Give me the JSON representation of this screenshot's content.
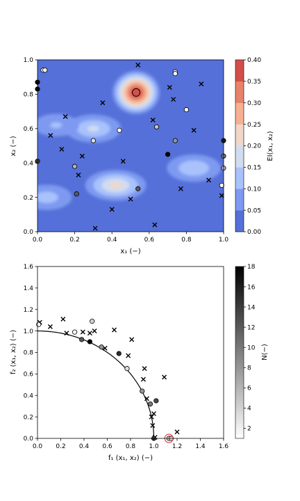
{
  "figure": {
    "top": {
      "xlabel": "x₁ (−)",
      "ylabel": "x₂ (−)",
      "xlim": [
        0,
        1
      ],
      "ylim": [
        0,
        1
      ],
      "xticks": [
        "0.0",
        "0.2",
        "0.4",
        "0.6",
        "0.8",
        "1.0"
      ],
      "yticks": [
        "0.0",
        "0.2",
        "0.4",
        "0.6",
        "0.8",
        "1.0"
      ],
      "colorbar": {
        "label": "EI(x₁, x₂)",
        "ticks": [
          "0.00",
          "0.05",
          "0.10",
          "0.15",
          "0.20",
          "0.25",
          "0.30",
          "0.35",
          "0.40"
        ],
        "levels": [
          0,
          0.05,
          0.1,
          0.15,
          0.2,
          0.25,
          0.3,
          0.35,
          0.4
        ],
        "colors": [
          "#5570d8",
          "#7e9af0",
          "#a9c2fc",
          "#d2dcf0",
          "#f1d7c9",
          "#f6b193",
          "#e8836a",
          "#d3504a"
        ]
      }
    },
    "bottom": {
      "xlabel": "f₁ (x₁, x₂) (−)",
      "ylabel": "f₂ (x₁, x₂) (−)",
      "xlim": [
        0,
        1.6
      ],
      "ylim": [
        0,
        1.6
      ],
      "xticks": [
        "0.0",
        "0.2",
        "0.4",
        "0.6",
        "0.8",
        "1.0",
        "1.2",
        "1.4",
        "1.6"
      ],
      "yticks": [
        "0.0",
        "0.2",
        "0.4",
        "0.6",
        "0.8",
        "1.0",
        "1.2",
        "1.4",
        "1.6"
      ],
      "colorbar": {
        "label": "N(−)",
        "ticks": [
          "2",
          "4",
          "6",
          "8",
          "10",
          "12",
          "14",
          "16",
          "18"
        ],
        "range": [
          1,
          18
        ]
      }
    }
  },
  "chart_data": [
    {
      "type": "contour",
      "title": "",
      "xlabel": "x₁ (−)",
      "ylabel": "x₂ (−)",
      "xlim": [
        0,
        1
      ],
      "ylim": [
        0,
        1
      ],
      "colorbar_label": "EI(x₁, x₂)",
      "levels": [
        0,
        0.05,
        0.1,
        0.15,
        0.2,
        0.25,
        0.3,
        0.35,
        0.4
      ],
      "peaks": [
        {
          "x": 0.53,
          "y": 0.81,
          "value": 0.37
        },
        {
          "x": 0.42,
          "y": 0.27,
          "value": 0.2
        },
        {
          "x": 0.3,
          "y": 0.6,
          "value": 0.15
        },
        {
          "x": 0.84,
          "y": 0.37,
          "value": 0.14
        },
        {
          "x": 0.1,
          "y": 0.62,
          "value": 0.1
        },
        {
          "x": 0.05,
          "y": 0.2,
          "value": 0.12
        }
      ],
      "infill_point": {
        "x": 0.53,
        "y": 0.81
      },
      "sample_points": [
        {
          "x": 0.0,
          "y": 0.87,
          "N": 18
        },
        {
          "x": 0.0,
          "y": 0.83,
          "N": 18
        },
        {
          "x": 0.03,
          "y": 0.94,
          "N": 1
        },
        {
          "x": 0.04,
          "y": 0.94,
          "N": 1
        },
        {
          "x": 0.3,
          "y": 0.53,
          "N": 3
        },
        {
          "x": 0.44,
          "y": 0.59,
          "N": 1
        },
        {
          "x": 0.64,
          "y": 0.61,
          "N": 5
        },
        {
          "x": 0.74,
          "y": 0.93,
          "N": 1
        },
        {
          "x": 0.74,
          "y": 0.92,
          "N": 1
        },
        {
          "x": 0.8,
          "y": 0.71,
          "N": 1
        },
        {
          "x": 0.7,
          "y": 0.45,
          "N": 18
        },
        {
          "x": 0.74,
          "y": 0.53,
          "N": 8
        },
        {
          "x": 0.54,
          "y": 0.25,
          "N": 12
        },
        {
          "x": 0.21,
          "y": 0.22,
          "N": 12
        },
        {
          "x": 0.2,
          "y": 0.38,
          "N": 6
        },
        {
          "x": 0.0,
          "y": 0.41,
          "N": 14
        },
        {
          "x": 1.0,
          "y": 0.53,
          "N": 16
        },
        {
          "x": 1.0,
          "y": 0.44,
          "N": 10
        },
        {
          "x": 1.0,
          "y": 0.37,
          "N": 6
        },
        {
          "x": 0.99,
          "y": 0.27,
          "N": 1
        }
      ],
      "crosses": [
        {
          "x": 0.54,
          "y": 0.97
        },
        {
          "x": 0.88,
          "y": 0.86
        },
        {
          "x": 0.71,
          "y": 0.84
        },
        {
          "x": 0.73,
          "y": 0.77
        },
        {
          "x": 0.35,
          "y": 0.75
        },
        {
          "x": 0.15,
          "y": 0.67
        },
        {
          "x": 0.62,
          "y": 0.65
        },
        {
          "x": 0.84,
          "y": 0.59
        },
        {
          "x": 0.07,
          "y": 0.56
        },
        {
          "x": 0.13,
          "y": 0.48
        },
        {
          "x": 0.24,
          "y": 0.44
        },
        {
          "x": 0.46,
          "y": 0.41
        },
        {
          "x": 0.22,
          "y": 0.33
        },
        {
          "x": 0.92,
          "y": 0.3
        },
        {
          "x": 0.77,
          "y": 0.25
        },
        {
          "x": 0.99,
          "y": 0.21
        },
        {
          "x": 0.5,
          "y": 0.19
        },
        {
          "x": 0.4,
          "y": 0.13
        },
        {
          "x": 0.63,
          "y": 0.04
        },
        {
          "x": 0.31,
          "y": 0.02
        }
      ]
    },
    {
      "type": "scatter",
      "title": "",
      "xlabel": "f₁ (x₁, x₂) (−)",
      "ylabel": "f₂ (x₁, x₂) (−)",
      "xlim": [
        0,
        1.6
      ],
      "ylim": [
        0,
        1.6
      ],
      "colorbar_label": "N(−)",
      "pareto_front": "quarter circle of radius 1 (f1² + f2² = 1)",
      "highlight": {
        "x": 1.13,
        "y": 0.0
      },
      "sample_points": [
        {
          "x": 0.01,
          "y": 1.06,
          "N": 1
        },
        {
          "x": 0.32,
          "y": 0.99,
          "N": 1
        },
        {
          "x": 0.47,
          "y": 1.09,
          "N": 4
        },
        {
          "x": 0.38,
          "y": 0.92,
          "N": 12
        },
        {
          "x": 0.45,
          "y": 0.9,
          "N": 18
        },
        {
          "x": 0.55,
          "y": 0.85,
          "N": 8
        },
        {
          "x": 0.7,
          "y": 0.79,
          "N": 15
        },
        {
          "x": 0.77,
          "y": 0.65,
          "N": 3
        },
        {
          "x": 0.9,
          "y": 0.44,
          "N": 8
        },
        {
          "x": 0.97,
          "y": 0.32,
          "N": 10
        },
        {
          "x": 1.02,
          "y": 0.35,
          "N": 13
        },
        {
          "x": 1.0,
          "y": 0.0,
          "N": 14
        },
        {
          "x": 1.13,
          "y": 0.0,
          "N": 3
        },
        {
          "x": 1.15,
          "y": 0.0,
          "N": 3
        }
      ],
      "crosses": [
        {
          "x": 0.02,
          "y": 1.08
        },
        {
          "x": 0.11,
          "y": 1.04
        },
        {
          "x": 0.22,
          "y": 1.11
        },
        {
          "x": 0.25,
          "y": 0.98
        },
        {
          "x": 0.39,
          "y": 0.99
        },
        {
          "x": 0.45,
          "y": 0.98
        },
        {
          "x": 0.49,
          "y": 1.0
        },
        {
          "x": 0.58,
          "y": 0.84
        },
        {
          "x": 0.66,
          "y": 1.01
        },
        {
          "x": 0.78,
          "y": 0.77
        },
        {
          "x": 0.81,
          "y": 0.92
        },
        {
          "x": 0.91,
          "y": 0.55
        },
        {
          "x": 0.92,
          "y": 0.65
        },
        {
          "x": 0.94,
          "y": 0.37
        },
        {
          "x": 0.98,
          "y": 0.2
        },
        {
          "x": 1.0,
          "y": 0.23
        },
        {
          "x": 0.99,
          "y": 0.12
        },
        {
          "x": 1.09,
          "y": 0.57
        },
        {
          "x": 1.2,
          "y": 0.06
        },
        {
          "x": 1.01,
          "y": 0.01
        }
      ]
    }
  ]
}
